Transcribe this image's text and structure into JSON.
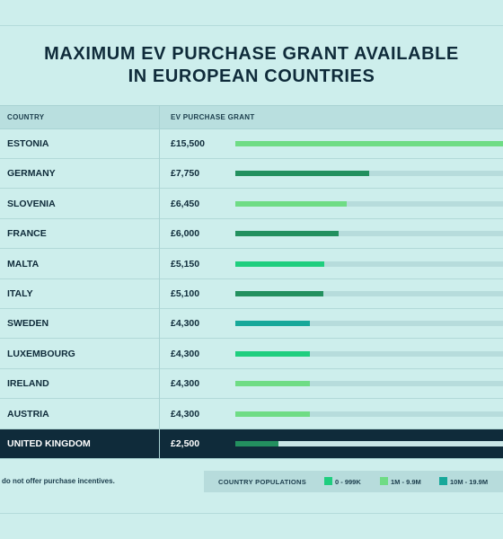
{
  "title": {
    "line1": "MAXIMUM EV PURCHASE GRANT AVAILABLE",
    "line2": "IN EUROPEAN COUNTRIES"
  },
  "headers": {
    "country": "COUNTRY",
    "grant": "EV PURCHASE GRANT"
  },
  "note": "do not offer purchase incentives.",
  "legend": {
    "title": "COUNTRY POPULATIONS",
    "items": [
      {
        "label": "0 - 999K",
        "color": "#1fce7f"
      },
      {
        "label": "1M - 9.9M",
        "color": "#6fdc85"
      },
      {
        "label": "10M - 19.9M",
        "color": "#17a89a"
      }
    ]
  },
  "colors": {
    "dark_green": "#23905f",
    "highlight_bar": "#23905f",
    "track": "#b7dcdc"
  },
  "chart_data": {
    "type": "bar",
    "orientation": "horizontal",
    "title": "MAXIMUM EV PURCHASE GRANT AVAILABLE IN EUROPEAN COUNTRIES",
    "xlim": [
      0,
      15500
    ],
    "rows": [
      {
        "country": "ESTONIA",
        "grant_label": "£15,500",
        "value": 15500,
        "color": "#6fdc85"
      },
      {
        "country": "GERMANY",
        "grant_label": "£7,750",
        "value": 7750,
        "color": "#23905f"
      },
      {
        "country": "SLOVENIA",
        "grant_label": "£6,450",
        "value": 6450,
        "color": "#6fdc85"
      },
      {
        "country": "FRANCE",
        "grant_label": "£6,000",
        "value": 6000,
        "color": "#23905f"
      },
      {
        "country": "MALTA",
        "grant_label": "£5,150",
        "value": 5150,
        "color": "#1fce7f"
      },
      {
        "country": "ITALY",
        "grant_label": "£5,100",
        "value": 5100,
        "color": "#23905f"
      },
      {
        "country": "SWEDEN",
        "grant_label": "£4,300",
        "value": 4300,
        "color": "#17a89a"
      },
      {
        "country": "LUXEMBOURG",
        "grant_label": "£4,300",
        "value": 4300,
        "color": "#1fce7f"
      },
      {
        "country": "IRELAND",
        "grant_label": "£4,300",
        "value": 4300,
        "color": "#6fdc85"
      },
      {
        "country": "AUSTRIA",
        "grant_label": "£4,300",
        "value": 4300,
        "color": "#6fdc85"
      },
      {
        "country": "UNITED KINGDOM",
        "grant_label": "£2,500",
        "value": 2500,
        "color": "#23905f",
        "highlight": true
      }
    ]
  }
}
